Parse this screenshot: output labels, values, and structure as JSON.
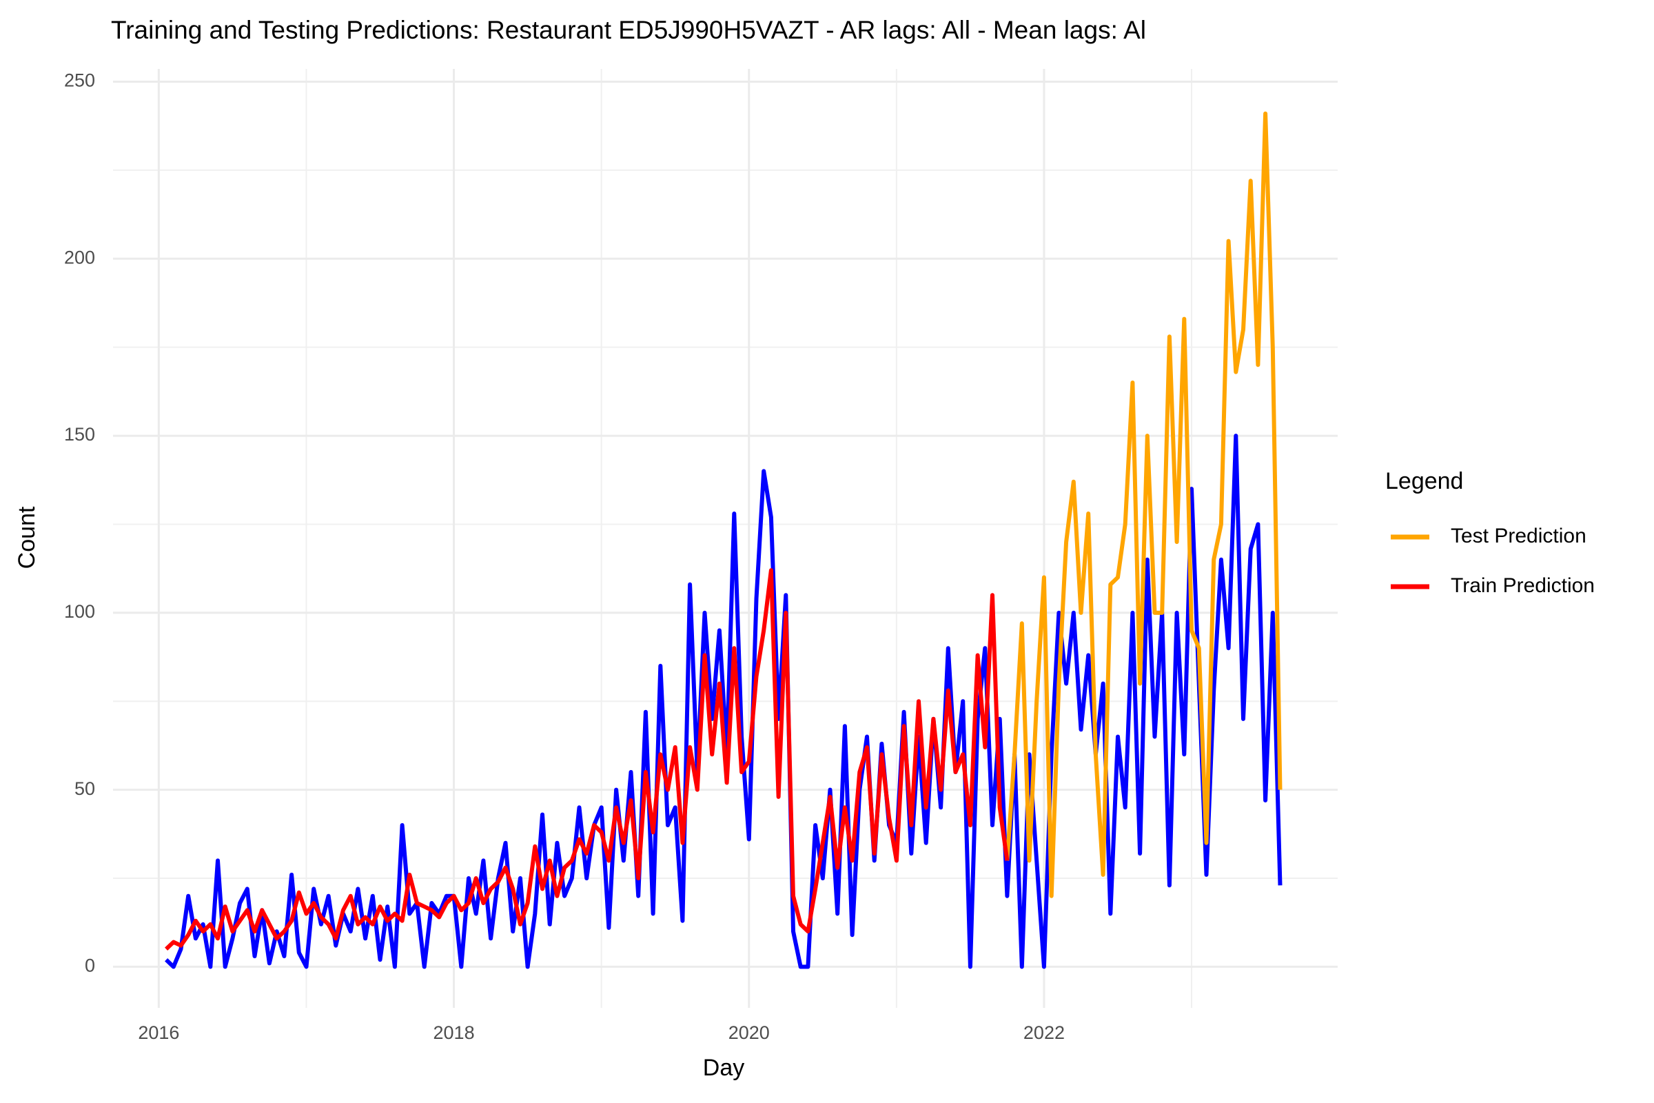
{
  "chart_data": {
    "type": "line",
    "title": "Training and Testing Predictions: Restaurant ED5J990H5VAZT - AR lags: All - Mean lags: Al",
    "x_label": "Day",
    "y_label": "Count",
    "legend_title": "Legend",
    "legend_position": "right",
    "grid": true,
    "xlim": [
      2015.69,
      2023.99
    ],
    "xticks": [
      2016,
      2018,
      2020,
      2022
    ],
    "xminor": [
      2017,
      2019,
      2021,
      2023
    ],
    "ylim": [
      -11.6,
      253.6
    ],
    "yticks": [
      0,
      50,
      100,
      150,
      200,
      250
    ],
    "yminor": [
      25,
      75,
      125,
      175,
      225
    ],
    "x": [
      2016.05,
      2016.1,
      2016.15,
      2016.2,
      2016.25,
      2016.3,
      2016.35,
      2016.4,
      2016.45,
      2016.5,
      2016.55,
      2016.6,
      2016.65,
      2016.7,
      2016.75,
      2016.8,
      2016.85,
      2016.9,
      2016.95,
      2017,
      2017.05,
      2017.1,
      2017.15,
      2017.2,
      2017.25,
      2017.3,
      2017.35,
      2017.4,
      2017.45,
      2017.5,
      2017.55,
      2017.6,
      2017.65,
      2017.7,
      2017.75,
      2017.8,
      2017.85,
      2017.9,
      2017.95,
      2018,
      2018.05,
      2018.1,
      2018.15,
      2018.2,
      2018.25,
      2018.3,
      2018.35,
      2018.4,
      2018.45,
      2018.5,
      2018.55,
      2018.6,
      2018.65,
      2018.7,
      2018.75,
      2018.8,
      2018.85,
      2018.9,
      2018.95,
      2019,
      2019.05,
      2019.1,
      2019.15,
      2019.2,
      2019.25,
      2019.3,
      2019.35,
      2019.4,
      2019.45,
      2019.5,
      2019.55,
      2019.6,
      2019.65,
      2019.7,
      2019.75,
      2019.8,
      2019.85,
      2019.9,
      2019.95,
      2020,
      2020.05,
      2020.1,
      2020.15,
      2020.2,
      2020.25,
      2020.3,
      2020.35,
      2020.4,
      2020.45,
      2020.5,
      2020.55,
      2020.6,
      2020.65,
      2020.7,
      2020.75,
      2020.8,
      2020.85,
      2020.9,
      2020.95,
      2021,
      2021.05,
      2021.1,
      2021.15,
      2021.2,
      2021.25,
      2021.3,
      2021.35,
      2021.4,
      2021.45,
      2021.5,
      2021.55,
      2021.6,
      2021.65,
      2021.7,
      2021.75,
      2021.8,
      2021.85,
      2021.9,
      2021.95,
      2022,
      2022.05,
      2022.1,
      2022.15,
      2022.2,
      2022.25,
      2022.3,
      2022.35,
      2022.4,
      2022.45,
      2022.5,
      2022.55,
      2022.6,
      2022.65,
      2022.7,
      2022.75,
      2022.8,
      2022.85,
      2022.9,
      2022.95,
      2023,
      2023.05,
      2023.1,
      2023.15,
      2023.2,
      2023.25,
      2023.3,
      2023.35,
      2023.4,
      2023.45,
      2023.5,
      2023.55,
      2023.6
    ],
    "series": [
      {
        "color": "#0000ff",
        "values": [
          2,
          0,
          5,
          20,
          8,
          12,
          0,
          30,
          0,
          8,
          18,
          22,
          3,
          16,
          1,
          10,
          3,
          26,
          4,
          0,
          22,
          12,
          20,
          6,
          15,
          10,
          22,
          8,
          20,
          2,
          17,
          0,
          40,
          15,
          18,
          0,
          18,
          15,
          20,
          20,
          0,
          25,
          15,
          30,
          8,
          25,
          35,
          10,
          25,
          0,
          15,
          43,
          12,
          35,
          20,
          25,
          45,
          25,
          40,
          45,
          11,
          50,
          30,
          55,
          20,
          72,
          15,
          85,
          40,
          45,
          13,
          108,
          55,
          100,
          70,
          95,
          60,
          128,
          65,
          36,
          104,
          140,
          127,
          70,
          105,
          10,
          0,
          0,
          40,
          25,
          50,
          15,
          68,
          9,
          50,
          65,
          30,
          63,
          40,
          35,
          72,
          32,
          65,
          35,
          70,
          45,
          90,
          55,
          75,
          0,
          70,
          90,
          40,
          70,
          20,
          60,
          0,
          60,
          30,
          0,
          60,
          100,
          80,
          100,
          67,
          88,
          60,
          80,
          15,
          65,
          45,
          100,
          32,
          115,
          65,
          100,
          23,
          100,
          60,
          135,
          80,
          26,
          78,
          115,
          90,
          150,
          70,
          118,
          125,
          47,
          100,
          23
        ]
      },
      {
        "name": "Test Prediction",
        "color": "#ffa500",
        "values": [
          null,
          null,
          null,
          null,
          null,
          null,
          null,
          null,
          null,
          null,
          null,
          null,
          null,
          null,
          null,
          null,
          null,
          null,
          null,
          null,
          null,
          null,
          null,
          null,
          null,
          null,
          null,
          null,
          null,
          null,
          null,
          null,
          null,
          null,
          null,
          null,
          null,
          null,
          null,
          null,
          null,
          null,
          null,
          null,
          null,
          null,
          null,
          null,
          null,
          null,
          null,
          null,
          null,
          null,
          null,
          null,
          null,
          null,
          null,
          null,
          null,
          null,
          null,
          null,
          null,
          null,
          null,
          null,
          null,
          null,
          null,
          null,
          null,
          null,
          null,
          null,
          null,
          null,
          null,
          null,
          null,
          null,
          null,
          null,
          null,
          null,
          null,
          null,
          null,
          null,
          null,
          null,
          null,
          null,
          null,
          null,
          null,
          null,
          null,
          null,
          null,
          null,
          null,
          null,
          null,
          null,
          null,
          null,
          null,
          null,
          null,
          null,
          null,
          null,
          30,
          60,
          97,
          30,
          75,
          110,
          20,
          80,
          120,
          137,
          100,
          128,
          60,
          26,
          108,
          110,
          125,
          165,
          80,
          150,
          100,
          100,
          178,
          120,
          183,
          95,
          90,
          35,
          115,
          125,
          205,
          168,
          180,
          222,
          170,
          241,
          175,
          50
        ]
      },
      {
        "name": "Train Prediction",
        "color": "#ff0000",
        "values": [
          5,
          7,
          6,
          9,
          13,
          10,
          12,
          8,
          17,
          10,
          13,
          16,
          10,
          16,
          12,
          8,
          10,
          13,
          21,
          15,
          18,
          14,
          12,
          8,
          16,
          20,
          12,
          14,
          12,
          17,
          13,
          15,
          13,
          26,
          18,
          17,
          16,
          14,
          18,
          20,
          16,
          18,
          25,
          18,
          22,
          24,
          28,
          22,
          12,
          18,
          34,
          22,
          30,
          20,
          28,
          30,
          36,
          32,
          40,
          38,
          30,
          45,
          35,
          47,
          25,
          55,
          38,
          60,
          50,
          62,
          35,
          62,
          50,
          88,
          60,
          80,
          52,
          90,
          55,
          58,
          82,
          95,
          112,
          48,
          100,
          20,
          12,
          10,
          22,
          35,
          48,
          28,
          45,
          30,
          55,
          62,
          32,
          60,
          42,
          30,
          68,
          40,
          75,
          45,
          70,
          50,
          78,
          55,
          60,
          40,
          88,
          62,
          105,
          45,
          30,
          null,
          null,
          null,
          null,
          null,
          null,
          null,
          null,
          null,
          null,
          null,
          null,
          null,
          null,
          null,
          null,
          null,
          null,
          null,
          null,
          null,
          null,
          null,
          null,
          null,
          null,
          null,
          null,
          null,
          null,
          null,
          null,
          null,
          null,
          null,
          null,
          null
        ]
      }
    ]
  }
}
